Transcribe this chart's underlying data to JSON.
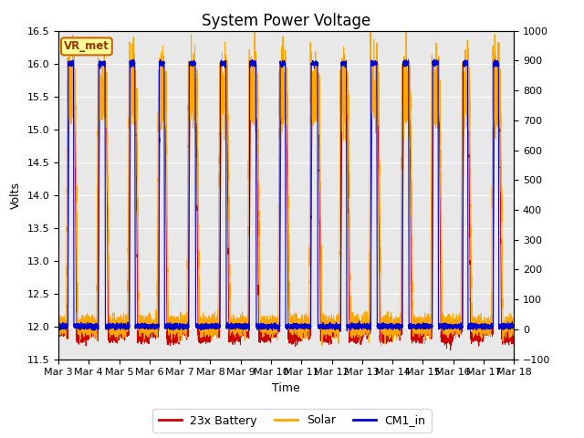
{
  "title": "System Power Voltage",
  "xlabel": "Time",
  "ylabel": "Volts",
  "ylim_left": [
    11.5,
    16.5
  ],
  "ylim_right": [
    -100,
    1000
  ],
  "yticks_left": [
    11.5,
    12.0,
    12.5,
    13.0,
    13.5,
    14.0,
    14.5,
    15.0,
    15.5,
    16.0,
    16.5
  ],
  "yticks_right": [
    -100,
    0,
    100,
    200,
    300,
    400,
    500,
    600,
    700,
    800,
    900,
    1000
  ],
  "xtick_labels": [
    "Mar 3",
    "Mar 4",
    "Mar 5",
    "Mar 6",
    "Mar 7",
    "Mar 8",
    "Mar 9",
    "Mar 10",
    "Mar 11",
    "Mar 12",
    "Mar 13",
    "Mar 14",
    "Mar 15",
    "Mar 16",
    "Mar 17",
    "Mar 18"
  ],
  "xtick_positions": [
    0,
    1,
    2,
    3,
    4,
    5,
    6,
    7,
    8,
    9,
    10,
    11,
    12,
    13,
    14,
    15
  ],
  "color_battery": "#cc0000",
  "color_solar": "#ffa500",
  "color_cm1": "#0000cc",
  "legend_labels": [
    "23x Battery",
    "Solar",
    "CM1_in"
  ],
  "vr_met_label": "VR_met",
  "vr_met_bg": "#ffff99",
  "vr_met_border": "#cc6600",
  "background_inner": "#e8e8e8",
  "grid_color": "#ffffff",
  "title_fontsize": 12,
  "label_fontsize": 9,
  "tick_fontsize": 8,
  "legend_fontsize": 9
}
